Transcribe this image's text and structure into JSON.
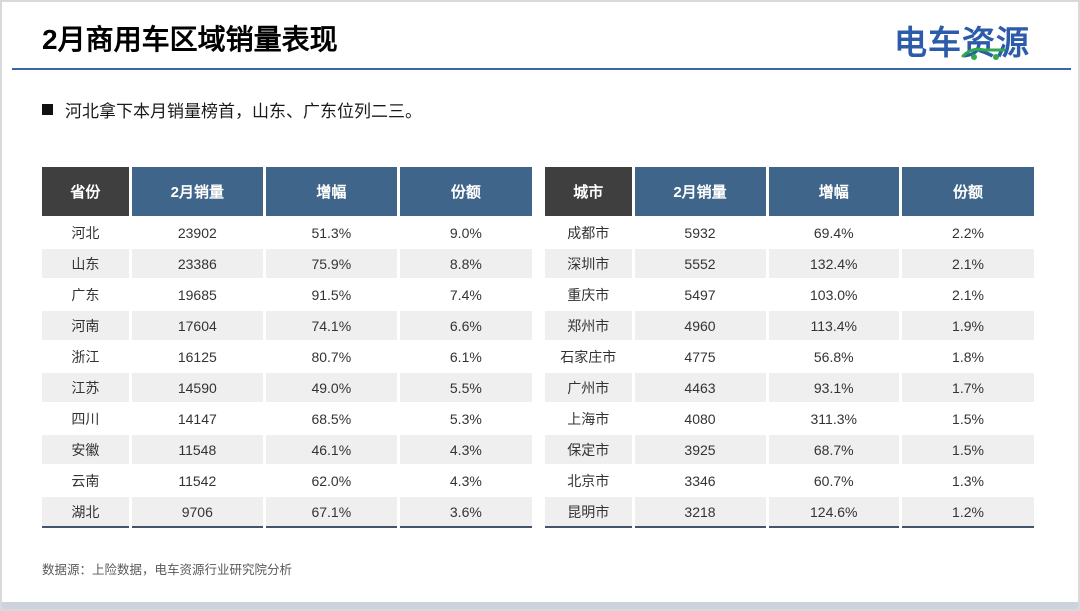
{
  "slide": {
    "title": "2月商用车区域销量表现",
    "bullet": "河北拿下本月销量榜首，山东、广东位列二三。",
    "footnote": "数据源：上险数据，电车资源行业研究院分析",
    "logo_text": "电车资源"
  },
  "colors": {
    "accent_blue": "#3a66a8",
    "table_header_blue": "#40658a",
    "table_header_dark": "#3f3f3f",
    "row_alt_gray": "#efefef",
    "table_bottom_border": "#44546a",
    "logo_blue": "#2c5ba9",
    "logo_green": "#2faa4a",
    "bottom_bar": "#ccd3dd"
  },
  "province_table": {
    "headers": [
      "省份",
      "2月销量",
      "增幅",
      "份额"
    ],
    "col_widths": [
      "18%",
      "27.4%",
      "27.3%",
      "27.3%"
    ],
    "rows": [
      [
        "河北",
        "23902",
        "51.3%",
        "9.0%"
      ],
      [
        "山东",
        "23386",
        "75.9%",
        "8.8%"
      ],
      [
        "广东",
        "19685",
        "91.5%",
        "7.4%"
      ],
      [
        "河南",
        "17604",
        "74.1%",
        "6.6%"
      ],
      [
        "浙江",
        "16125",
        "80.7%",
        "6.1%"
      ],
      [
        "江苏",
        "14590",
        "49.0%",
        "5.5%"
      ],
      [
        "四川",
        "14147",
        "68.5%",
        "5.3%"
      ],
      [
        "安徽",
        "11548",
        "46.1%",
        "4.3%"
      ],
      [
        "云南",
        "11542",
        "62.0%",
        "4.3%"
      ],
      [
        "湖北",
        "9706",
        "67.1%",
        "3.6%"
      ]
    ]
  },
  "city_table": {
    "headers": [
      "城市",
      "2月销量",
      "增幅",
      "份额"
    ],
    "col_widths": [
      "18%",
      "27.4%",
      "27.3%",
      "27.3%"
    ],
    "rows": [
      [
        "成都市",
        "5932",
        "69.4%",
        "2.2%"
      ],
      [
        "深圳市",
        "5552",
        "132.4%",
        "2.1%"
      ],
      [
        "重庆市",
        "5497",
        "103.0%",
        "2.1%"
      ],
      [
        "郑州市",
        "4960",
        "113.4%",
        "1.9%"
      ],
      [
        "石家庄市",
        "4775",
        "56.8%",
        "1.8%"
      ],
      [
        "广州市",
        "4463",
        "93.1%",
        "1.7%"
      ],
      [
        "上海市",
        "4080",
        "311.3%",
        "1.5%"
      ],
      [
        "保定市",
        "3925",
        "68.7%",
        "1.5%"
      ],
      [
        "北京市",
        "3346",
        "60.7%",
        "1.3%"
      ],
      [
        "昆明市",
        "3218",
        "124.6%",
        "1.2%"
      ]
    ]
  }
}
